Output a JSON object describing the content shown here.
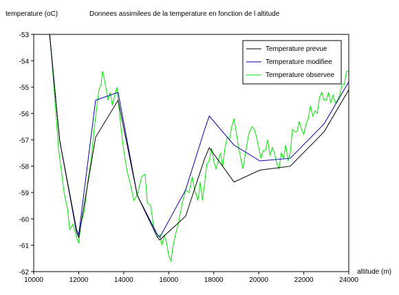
{
  "chart_data": {
    "type": "line",
    "title": "Donnees assimilees de la temperature en fonction de l altitude",
    "ylabel": "temperature (oC)",
    "xlabel": "altitude (m)",
    "xlim": [
      10000,
      24000
    ],
    "ylim": [
      -62,
      -53
    ],
    "xticks": [
      10000,
      12000,
      14000,
      16000,
      18000,
      20000,
      22000,
      24000
    ],
    "yticks": [
      -53,
      -54,
      -55,
      -56,
      -57,
      -58,
      -59,
      -60,
      -61,
      -62
    ],
    "grid": false,
    "legend_position": "top-right",
    "series": [
      {
        "name": "Temperature prevue",
        "color": "#000000",
        "x": [
          10650,
          11150,
          11900,
          12000,
          12750,
          13750,
          14600,
          15500,
          15600,
          16750,
          17600,
          17800,
          18900,
          20050,
          21400,
          22900,
          24000
        ],
        "y": [
          -52.5,
          -57.0,
          -60.5,
          -60.7,
          -56.9,
          -55.5,
          -59.1,
          -60.7,
          -60.8,
          -59.9,
          -57.7,
          -57.3,
          -58.6,
          -58.15,
          -58.0,
          -56.7,
          -55.1
        ]
      },
      {
        "name": "Temperature modifiee",
        "color": "#0000b4",
        "x": [
          10650,
          11150,
          11900,
          12000,
          12750,
          13750,
          14600,
          15500,
          15600,
          16750,
          17600,
          17800,
          18900,
          20050,
          21400,
          22900,
          24000
        ],
        "y": [
          -52.5,
          -57.0,
          -60.4,
          -60.6,
          -55.5,
          -55.2,
          -59.1,
          -60.6,
          -60.7,
          -58.9,
          -56.6,
          -56.1,
          -57.2,
          -57.8,
          -57.7,
          -56.4,
          -54.8
        ]
      },
      {
        "name": "Temperature observee",
        "color": "#00e600",
        "x": [
          10700,
          10900,
          11100,
          11200,
          11350,
          11500,
          11600,
          11750,
          11900,
          12000,
          12100,
          12250,
          12400,
          12550,
          12700,
          12800,
          12900,
          13000,
          13050,
          13100,
          13200,
          13300,
          13400,
          13500,
          13600,
          13700,
          13800,
          13900,
          14000,
          14150,
          14300,
          14450,
          14600,
          14800,
          14950,
          15050,
          15200,
          15350,
          15500,
          15600,
          15700,
          15800,
          15900,
          16000,
          16100,
          16200,
          16300,
          16450,
          16600,
          16750,
          16900,
          17050,
          17150,
          17300,
          17400,
          17500,
          17600,
          17700,
          17800,
          17900,
          18000,
          18100,
          18200,
          18300,
          18400,
          18500,
          18600,
          18700,
          18800,
          18900,
          19000,
          19100,
          19200,
          19300,
          19450,
          19550,
          19700,
          19800,
          19900,
          20000,
          20100,
          20200,
          20300,
          20400,
          20500,
          20600,
          20700,
          20800,
          20900,
          21000,
          21100,
          21200,
          21300,
          21400,
          21500,
          21600,
          21700,
          21800,
          21900,
          22000,
          22100,
          22200,
          22300,
          22400,
          22500,
          22600,
          22700,
          22800,
          22900,
          23000,
          23100,
          23200,
          23300,
          23400,
          23500,
          23600,
          23700,
          23800,
          23900,
          24000
        ],
        "y": [
          -52.8,
          -55.0,
          -57.3,
          -58.0,
          -59.0,
          -59.6,
          -60.4,
          -60.2,
          -60.7,
          -60.9,
          -60.2,
          -59.7,
          -58.6,
          -57.8,
          -56.5,
          -55.8,
          -55.1,
          -54.9,
          -54.4,
          -54.5,
          -55.0,
          -55.5,
          -55.2,
          -55.7,
          -55.3,
          -55.0,
          -55.9,
          -56.7,
          -57.4,
          -58.2,
          -58.7,
          -59.3,
          -59.1,
          -58.4,
          -58.3,
          -59.4,
          -59.5,
          -60.4,
          -60.7,
          -60.6,
          -61.0,
          -60.6,
          -60.9,
          -61.4,
          -61.6,
          -61.0,
          -60.6,
          -60.1,
          -59.4,
          -58.9,
          -59.0,
          -58.4,
          -58.9,
          -59.3,
          -58.6,
          -59.3,
          -58.6,
          -57.9,
          -57.8,
          -57.3,
          -57.8,
          -58.1,
          -57.8,
          -57.5,
          -58.0,
          -57.3,
          -56.9,
          -57.0,
          -56.5,
          -56.2,
          -56.7,
          -57.3,
          -57.7,
          -58.1,
          -57.3,
          -56.8,
          -56.5,
          -56.6,
          -56.9,
          -57.3,
          -57.7,
          -57.4,
          -57.4,
          -57.0,
          -57.6,
          -57.3,
          -57.5,
          -57.9,
          -58.1,
          -57.5,
          -57.7,
          -57.2,
          -57.8,
          -57.5,
          -56.6,
          -56.7,
          -56.7,
          -56.3,
          -56.6,
          -56.8,
          -56.4,
          -56.2,
          -55.7,
          -56.1,
          -55.9,
          -56.0,
          -55.4,
          -55.2,
          -55.5,
          -55.5,
          -55.2,
          -55.6,
          -55.3,
          -55.6,
          -55.5,
          -55.3,
          -54.9,
          -54.9,
          -54.4,
          -54.4
        ]
      }
    ]
  }
}
